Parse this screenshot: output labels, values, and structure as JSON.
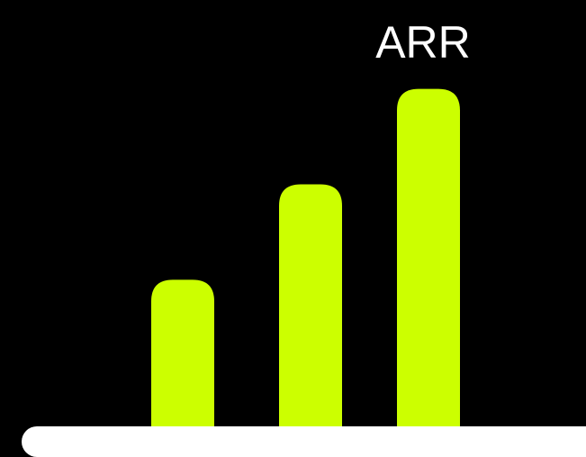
{
  "chart_data": {
    "type": "bar",
    "title": "ARR",
    "categories": [
      "",
      "",
      ""
    ],
    "values": [
      42,
      69,
      96
    ],
    "ylim": [
      0,
      100
    ],
    "grid": false,
    "xlabel": "",
    "ylabel": ""
  },
  "colors": {
    "background": "#000000",
    "bar": "#ccff00",
    "baseline": "#ffffff",
    "title": "#ffffff"
  }
}
